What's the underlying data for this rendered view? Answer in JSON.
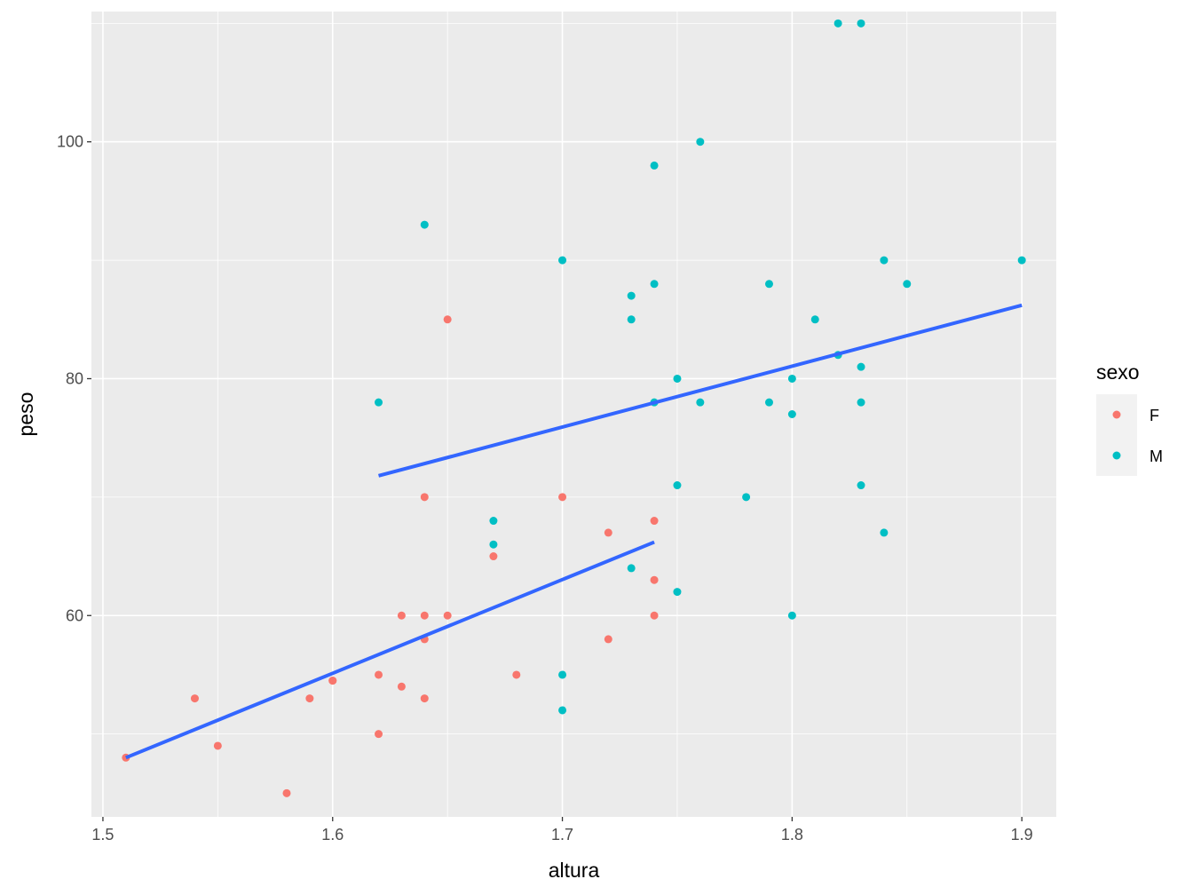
{
  "chart_data": {
    "type": "scatter",
    "xlabel": "altura",
    "ylabel": "peso",
    "xlim": [
      1.495,
      1.915
    ],
    "ylim": [
      43,
      111
    ],
    "x_ticks": [
      1.5,
      1.6,
      1.7,
      1.8,
      1.9
    ],
    "x_tick_labels": [
      "1.5",
      "1.6",
      "1.7",
      "1.8",
      "1.9"
    ],
    "y_ticks": [
      60,
      80,
      100
    ],
    "y_tick_labels": [
      "60",
      "80",
      "100"
    ],
    "grid": true,
    "legend": {
      "title": "sexo",
      "placement": "right",
      "entries": [
        "F",
        "M"
      ]
    },
    "colors": {
      "F": "#F8766D",
      "M": "#00BFC4",
      "fit": "#3366FF",
      "panel": "#EBEBEB",
      "grid": "#FFFFFF"
    },
    "series": [
      {
        "name": "F",
        "points": [
          [
            1.51,
            48
          ],
          [
            1.54,
            53
          ],
          [
            1.55,
            49
          ],
          [
            1.58,
            45
          ],
          [
            1.59,
            53
          ],
          [
            1.6,
            54.5
          ],
          [
            1.6,
            54.5
          ],
          [
            1.62,
            55
          ],
          [
            1.62,
            50
          ],
          [
            1.63,
            60
          ],
          [
            1.63,
            54
          ],
          [
            1.64,
            70
          ],
          [
            1.64,
            60
          ],
          [
            1.64,
            58
          ],
          [
            1.64,
            53
          ],
          [
            1.65,
            85
          ],
          [
            1.65,
            60
          ],
          [
            1.67,
            65
          ],
          [
            1.68,
            55
          ],
          [
            1.7,
            70
          ],
          [
            1.72,
            67
          ],
          [
            1.72,
            58
          ],
          [
            1.74,
            68
          ],
          [
            1.74,
            63
          ],
          [
            1.74,
            60
          ]
        ],
        "fit": {
          "x": [
            1.51,
            1.74
          ],
          "y": [
            48,
            66.2
          ]
        }
      },
      {
        "name": "M",
        "points": [
          [
            1.62,
            78
          ],
          [
            1.64,
            93
          ],
          [
            1.67,
            68
          ],
          [
            1.67,
            66
          ],
          [
            1.7,
            90
          ],
          [
            1.7,
            55
          ],
          [
            1.7,
            52
          ],
          [
            1.73,
            87
          ],
          [
            1.73,
            85
          ],
          [
            1.73,
            64
          ],
          [
            1.74,
            98
          ],
          [
            1.74,
            88
          ],
          [
            1.74,
            78
          ],
          [
            1.75,
            80
          ],
          [
            1.75,
            71
          ],
          [
            1.75,
            62
          ],
          [
            1.76,
            100
          ],
          [
            1.76,
            78
          ],
          [
            1.78,
            70
          ],
          [
            1.79,
            88
          ],
          [
            1.79,
            78
          ],
          [
            1.8,
            80
          ],
          [
            1.8,
            77
          ],
          [
            1.8,
            60
          ],
          [
            1.81,
            85
          ],
          [
            1.82,
            110
          ],
          [
            1.82,
            82
          ],
          [
            1.83,
            110
          ],
          [
            1.83,
            81
          ],
          [
            1.83,
            78
          ],
          [
            1.83,
            71
          ],
          [
            1.84,
            90
          ],
          [
            1.84,
            67
          ],
          [
            1.85,
            88
          ],
          [
            1.9,
            90
          ]
        ],
        "fit": {
          "x": [
            1.62,
            1.9
          ],
          "y": [
            71.8,
            86.2
          ]
        }
      }
    ]
  }
}
